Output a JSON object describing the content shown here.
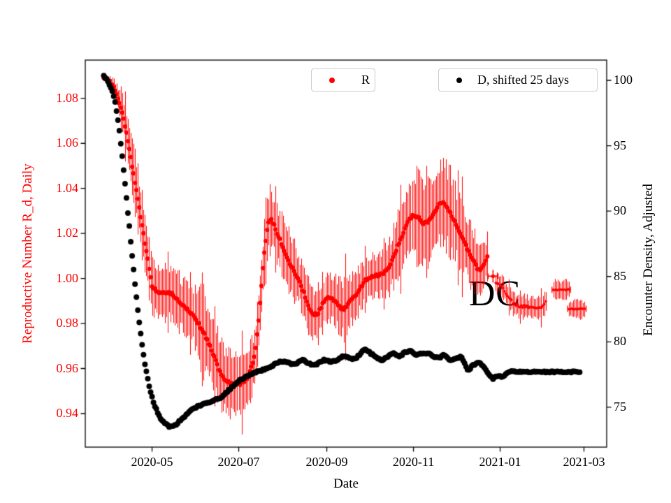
{
  "chart_data": {
    "type": "scatter",
    "title": "",
    "grid": false,
    "annotation": {
      "text": "DC"
    },
    "legend": [
      {
        "label": "R",
        "color": "#ff0000",
        "marker": "dot"
      },
      {
        "label": "D, shifted 25 days",
        "color": "#000000",
        "marker": "dot"
      }
    ],
    "axes": {
      "x": {
        "label": "Date",
        "min_date": "2020-03-15",
        "max_date": "2021-03-17",
        "ticks": [
          {
            "date": "2020-05-01",
            "label": "2020-05"
          },
          {
            "date": "2020-07-01",
            "label": "2020-07"
          },
          {
            "date": "2020-09-01",
            "label": "2020-09"
          },
          {
            "date": "2020-11-01",
            "label": "2020-11"
          },
          {
            "date": "2021-01-01",
            "label": "2021-01"
          },
          {
            "date": "2021-03-01",
            "label": "2021-03"
          }
        ]
      },
      "y_left": {
        "label": "Reproductive Number R_d, Daily",
        "color": "#ff0000",
        "min": 0.9251,
        "max": 1.097,
        "ticks": [
          {
            "value": 0.94,
            "label": "0.94"
          },
          {
            "value": 0.96,
            "label": "0.96"
          },
          {
            "value": 0.98,
            "label": "0.98"
          },
          {
            "value": 1.0,
            "label": "1.00"
          },
          {
            "value": 1.02,
            "label": "1.02"
          },
          {
            "value": 1.04,
            "label": "1.04"
          },
          {
            "value": 1.06,
            "label": "1.06"
          },
          {
            "value": 1.08,
            "label": "1.08"
          }
        ]
      },
      "y_right": {
        "label": "Encounter Density, Adjusted",
        "color": "#000000",
        "min": 71.95,
        "max": 101.55,
        "ticks": [
          {
            "value": 75,
            "label": "75"
          },
          {
            "value": 80,
            "label": "80"
          },
          {
            "value": 85,
            "label": "85"
          },
          {
            "value": 90,
            "label": "90"
          },
          {
            "value": 95,
            "label": "95"
          },
          {
            "value": 100,
            "label": "100"
          }
        ]
      }
    },
    "series": [
      {
        "name": "R",
        "axis": "left",
        "color": "#ff0000",
        "marker": "dot-with-vertical-error-bars",
        "segments": [
          {
            "dot_radius": 3.1,
            "points": [
              [
                "2020-03-28",
                1.0895,
                0.0012
              ],
              [
                "2020-04-01",
                1.0872,
                0.002
              ],
              [
                "2020-04-04",
                1.0845,
                0.003
              ],
              [
                "2020-04-07",
                1.08,
                0.0045
              ],
              [
                "2020-04-10",
                1.0735,
                0.007
              ],
              [
                "2020-04-13",
                1.0645,
                0.009
              ],
              [
                "2020-04-16",
                1.0535,
                0.011
              ],
              [
                "2020-04-19",
                1.0425,
                0.012
              ],
              [
                "2020-04-22",
                1.0315,
                0.0125
              ],
              [
                "2020-04-25",
                1.0195,
                0.012
              ],
              [
                "2020-04-28",
                1.0085,
                0.0115
              ],
              [
                "2020-05-01",
                0.997,
                0.0105
              ],
              [
                "2020-05-04",
                0.9948,
                0.0105
              ],
              [
                "2020-05-08",
                0.9936,
                0.0105
              ],
              [
                "2020-05-12",
                0.9936,
                0.0107
              ],
              [
                "2020-05-16",
                0.9926,
                0.011
              ],
              [
                "2020-05-20",
                0.99,
                0.0112
              ],
              [
                "2020-05-24",
                0.9874,
                0.0115
              ],
              [
                "2020-05-28",
                0.9848,
                0.012
              ],
              [
                "2020-06-01",
                0.9815,
                0.013
              ],
              [
                "2020-06-05",
                0.9775,
                0.0132
              ],
              [
                "2020-06-09",
                0.9725,
                0.0134
              ],
              [
                "2020-06-13",
                0.9665,
                0.0135
              ],
              [
                "2020-06-17",
                0.9598,
                0.0133
              ],
              [
                "2020-06-21",
                0.9555,
                0.013
              ],
              [
                "2020-06-25",
                0.9536,
                0.0125
              ],
              [
                "2020-06-29",
                0.953,
                0.012
              ],
              [
                "2020-07-03",
                0.9535,
                0.0116
              ],
              [
                "2020-07-07",
                0.956,
                0.0114
              ],
              [
                "2020-07-10",
                0.9605,
                0.0113
              ],
              [
                "2020-07-13",
                0.969,
                0.0115
              ],
              [
                "2020-07-16",
                0.989,
                0.012
              ],
              [
                "2020-07-19",
                1.011,
                0.0125
              ],
              [
                "2020-07-22",
                1.0253,
                0.013
              ],
              [
                "2020-07-25",
                1.0247,
                0.0128
              ],
              [
                "2020-07-28",
                1.02,
                0.012
              ],
              [
                "2020-08-01",
                1.014,
                0.0115
              ],
              [
                "2020-08-05",
                1.008,
                0.011
              ],
              [
                "2020-08-09",
                1.003,
                0.0105
              ],
              [
                "2020-08-13",
                0.998,
                0.0103
              ],
              [
                "2020-08-17",
                0.992,
                0.0108
              ],
              [
                "2020-08-20",
                0.9862,
                0.0115
              ],
              [
                "2020-08-23",
                0.984,
                0.012
              ],
              [
                "2020-08-26",
                0.9848,
                0.0115
              ],
              [
                "2020-08-29",
                0.9885,
                0.011
              ],
              [
                "2020-09-01",
                0.991,
                0.0105
              ],
              [
                "2020-09-04",
                0.9913,
                0.0107
              ],
              [
                "2020-09-07",
                0.9898,
                0.011
              ],
              [
                "2020-09-10",
                0.9875,
                0.0118
              ],
              [
                "2020-09-13",
                0.9866,
                0.0122
              ],
              [
                "2020-09-16",
                0.9886,
                0.0112
              ],
              [
                "2020-09-19",
                0.991,
                0.01
              ],
              [
                "2020-09-22",
                0.9932,
                0.0095
              ],
              [
                "2020-09-25",
                0.9962,
                0.0092
              ],
              [
                "2020-09-28",
                0.9992,
                0.0091
              ],
              [
                "2020-10-01",
                1.0006,
                0.0091
              ],
              [
                "2020-10-04",
                1.0014,
                0.0092
              ],
              [
                "2020-10-08",
                1.0016,
                0.0095
              ],
              [
                "2020-10-12",
                1.003,
                0.01
              ],
              [
                "2020-10-15",
                1.0055,
                0.0108
              ],
              [
                "2020-10-18",
                1.0095,
                0.0118
              ],
              [
                "2020-10-21",
                1.0145,
                0.0132
              ],
              [
                "2020-10-24",
                1.0192,
                0.0145
              ],
              [
                "2020-10-27",
                1.0235,
                0.0158
              ],
              [
                "2020-10-30",
                1.0272,
                0.017
              ],
              [
                "2020-11-02",
                1.028,
                0.0178
              ],
              [
                "2020-11-05",
                1.0268,
                0.0172
              ],
              [
                "2020-11-08",
                1.0247,
                0.0165
              ],
              [
                "2020-11-11",
                1.025,
                0.0162
              ],
              [
                "2020-11-14",
                1.0272,
                0.0165
              ],
              [
                "2020-11-17",
                1.031,
                0.0175
              ],
              [
                "2020-11-20",
                1.0338,
                0.0185
              ],
              [
                "2020-11-23",
                1.0332,
                0.018
              ],
              [
                "2020-11-26",
                1.0305,
                0.017
              ],
              [
                "2020-11-29",
                1.0268,
                0.016
              ],
              [
                "2020-12-02",
                1.0228,
                0.015
              ],
              [
                "2020-12-05",
                1.0183,
                0.0142
              ],
              [
                "2020-12-08",
                1.0145,
                0.0135
              ],
              [
                "2020-12-11",
                1.011,
                0.0126
              ],
              [
                "2020-12-14",
                1.007,
                0.0117
              ],
              [
                "2020-12-16",
                1.0047,
                0.011
              ],
              [
                "2020-12-18",
                1.0038,
                0.0104
              ],
              [
                "2020-12-20",
                1.0052,
                0.0098
              ],
              [
                "2020-12-22",
                1.008,
                0.0092
              ],
              [
                "2020-12-23",
                1.0094,
                0.009
              ]
            ]
          },
          {
            "dot_radius": 2.0,
            "points": [
              [
                "2020-12-29",
                0.9982,
                0.004
              ],
              [
                "2021-01-01",
                0.9974,
                0.0042
              ],
              [
                "2021-01-04",
                0.994,
                0.0042
              ],
              [
                "2021-01-07",
                0.9912,
                0.0042
              ],
              [
                "2021-01-10",
                0.9893,
                0.0043
              ],
              [
                "2021-01-13",
                0.9882,
                0.0043
              ],
              [
                "2021-01-16",
                0.9876,
                0.0043
              ],
              [
                "2021-01-19",
                0.9878,
                0.0044
              ],
              [
                "2021-01-22",
                0.9872,
                0.0044
              ],
              [
                "2021-01-25",
                0.9866,
                0.0044
              ],
              [
                "2021-01-28",
                0.9866,
                0.0045
              ],
              [
                "2021-01-31",
                0.9878,
                0.0045
              ],
              [
                "2021-02-02",
                0.9892,
                0.0046
              ]
            ]
          }
        ],
        "isolated_point": {
          "date": "2020-12-27",
          "value": 1.001,
          "err": 0.0028,
          "x_err_days": 3.5
        },
        "clusters": [
          {
            "center_date": "2021-02-13",
            "halfwidth_days": 6.5,
            "value": 0.995,
            "err": 0.004
          },
          {
            "center_date": "2021-02-24",
            "halfwidth_days": 6.5,
            "value": 0.9865,
            "err": 0.0035
          }
        ]
      },
      {
        "name": "D, shifted 25 days",
        "axis": "right",
        "color": "#000000",
        "marker": "dot",
        "dot_radius": 4.0,
        "points": [
          [
            "2020-03-28",
            100.3
          ],
          [
            "2020-03-31",
            99.9
          ],
          [
            "2020-04-03",
            99.2
          ],
          [
            "2020-04-05",
            98.3
          ],
          [
            "2020-04-07",
            97.0
          ],
          [
            "2020-04-09",
            95.2
          ],
          [
            "2020-04-11",
            93.2
          ],
          [
            "2020-04-13",
            91.0
          ],
          [
            "2020-04-15",
            88.8
          ],
          [
            "2020-04-17",
            86.6
          ],
          [
            "2020-04-19",
            84.4
          ],
          [
            "2020-04-21",
            82.4
          ],
          [
            "2020-04-23",
            80.6
          ],
          [
            "2020-04-25",
            79.0
          ],
          [
            "2020-04-27",
            77.7
          ],
          [
            "2020-04-29",
            76.6
          ],
          [
            "2020-05-02",
            75.4
          ],
          [
            "2020-05-05",
            74.6
          ],
          [
            "2020-05-08",
            74.0
          ],
          [
            "2020-05-11",
            73.7
          ],
          [
            "2020-05-14",
            73.5
          ],
          [
            "2020-05-17",
            73.6
          ],
          [
            "2020-05-20",
            73.9
          ],
          [
            "2020-05-23",
            74.2
          ],
          [
            "2020-05-26",
            74.5
          ],
          [
            "2020-05-29",
            74.8
          ],
          [
            "2020-06-01",
            75.0
          ],
          [
            "2020-06-07",
            75.3
          ],
          [
            "2020-06-13",
            75.5
          ],
          [
            "2020-06-19",
            75.8
          ],
          [
            "2020-06-25",
            76.4
          ],
          [
            "2020-07-01",
            77.0
          ],
          [
            "2020-07-07",
            77.4
          ],
          [
            "2020-07-13",
            77.7
          ],
          [
            "2020-07-19",
            77.9
          ],
          [
            "2020-07-25",
            78.2
          ],
          [
            "2020-07-31",
            78.5
          ],
          [
            "2020-08-05",
            78.4
          ],
          [
            "2020-08-10",
            78.3
          ],
          [
            "2020-08-15",
            78.6
          ],
          [
            "2020-08-20",
            78.3
          ],
          [
            "2020-08-25",
            78.3
          ],
          [
            "2020-08-30",
            78.6
          ],
          [
            "2020-09-04",
            78.5
          ],
          [
            "2020-09-08",
            78.6
          ],
          [
            "2020-09-12",
            78.9
          ],
          [
            "2020-09-16",
            78.8
          ],
          [
            "2020-09-20",
            78.7
          ],
          [
            "2020-09-24",
            79.0
          ],
          [
            "2020-09-28",
            79.4
          ],
          [
            "2020-10-02",
            79.1
          ],
          [
            "2020-10-06",
            78.8
          ],
          [
            "2020-10-10",
            78.6
          ],
          [
            "2020-10-14",
            78.9
          ],
          [
            "2020-10-18",
            79.1
          ],
          [
            "2020-10-22",
            78.9
          ],
          [
            "2020-10-26",
            79.2
          ],
          [
            "2020-10-30",
            79.3
          ],
          [
            "2020-11-03",
            79.0
          ],
          [
            "2020-11-07",
            79.1
          ],
          [
            "2020-11-11",
            79.1
          ],
          [
            "2020-11-15",
            78.9
          ],
          [
            "2020-11-19",
            78.8
          ],
          [
            "2020-11-23",
            79.0
          ],
          [
            "2020-11-27",
            78.6
          ],
          [
            "2020-12-01",
            78.7
          ],
          [
            "2020-12-05",
            78.8
          ],
          [
            "2020-12-09",
            77.9
          ],
          [
            "2020-12-13",
            78.2
          ],
          [
            "2020-12-17",
            78.4
          ],
          [
            "2020-12-21",
            78.0
          ],
          [
            "2020-12-24",
            77.5
          ],
          [
            "2020-12-27",
            77.2
          ],
          [
            "2020-12-30",
            77.4
          ],
          [
            "2021-01-02",
            77.3
          ],
          [
            "2021-01-05",
            77.5
          ],
          [
            "2021-01-08",
            77.7
          ],
          [
            "2021-01-12",
            77.7
          ],
          [
            "2021-02-01",
            77.7
          ],
          [
            "2021-02-26",
            77.7
          ]
        ]
      }
    ]
  }
}
